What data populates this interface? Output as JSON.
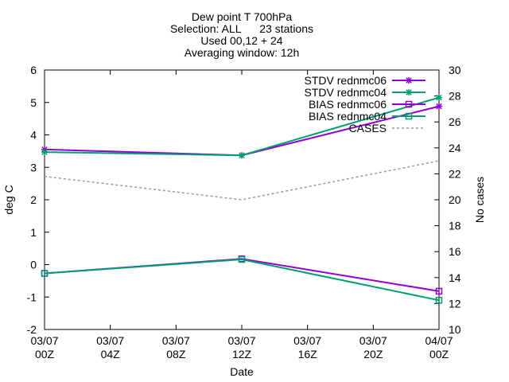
{
  "chart_data": {
    "type": "line",
    "title_lines": [
      "Dew point T 700hPa",
      "Selection: ALL      23 stations",
      "Used 00,12 + 24",
      "Averaging window: 12h"
    ],
    "xlabel": "Date",
    "ylabel": "deg C",
    "y2label": "No cases",
    "x_ticks": [
      {
        "x": 0,
        "line1": "03/07",
        "line2": "00Z"
      },
      {
        "x": 4,
        "line1": "03/07",
        "line2": "04Z"
      },
      {
        "x": 8,
        "line1": "03/07",
        "line2": "08Z"
      },
      {
        "x": 12,
        "line1": "03/07",
        "line2": "12Z"
      },
      {
        "x": 16,
        "line1": "03/07",
        "line2": "16Z"
      },
      {
        "x": 20,
        "line1": "03/07",
        "line2": "20Z"
      },
      {
        "x": 24,
        "line1": "04/07",
        "line2": "00Z"
      }
    ],
    "xlim": [
      0,
      24
    ],
    "ylim": [
      -2,
      6
    ],
    "y2lim": [
      10,
      30
    ],
    "y_ticks": [
      "-2",
      "-1",
      "0",
      "1",
      "2",
      "3",
      "4",
      "5",
      "6"
    ],
    "y2_ticks": [
      "10",
      "12",
      "14",
      "16",
      "18",
      "20",
      "22",
      "24",
      "26",
      "28",
      "30"
    ],
    "legend_position": "top-right",
    "series": [
      {
        "name": "STDV rednmc06",
        "color": "#9400d3",
        "marker": "star",
        "axis": "y",
        "x": [
          0,
          12,
          24
        ],
        "values": [
          3.55,
          3.37,
          4.88
        ]
      },
      {
        "name": "STDV rednmc04",
        "color": "#009e73",
        "marker": "star",
        "axis": "y",
        "x": [
          0,
          12,
          24
        ],
        "values": [
          3.47,
          3.37,
          5.15
        ]
      },
      {
        "name": "BIAS rednmc06",
        "color": "#9400d3",
        "marker": "square",
        "axis": "y",
        "x": [
          0,
          12,
          24
        ],
        "values": [
          -0.27,
          0.18,
          -0.82
        ]
      },
      {
        "name": "BIAS rednmc04",
        "color": "#009e73",
        "marker": "square",
        "axis": "y",
        "x": [
          0,
          12,
          24
        ],
        "values": [
          -0.27,
          0.16,
          -1.1
        ]
      },
      {
        "name": "CASES",
        "color": "#999999",
        "marker": "none",
        "dashed": true,
        "axis": "y2",
        "x": [
          0,
          12,
          24
        ],
        "values": [
          21.8,
          20,
          23
        ]
      }
    ]
  }
}
